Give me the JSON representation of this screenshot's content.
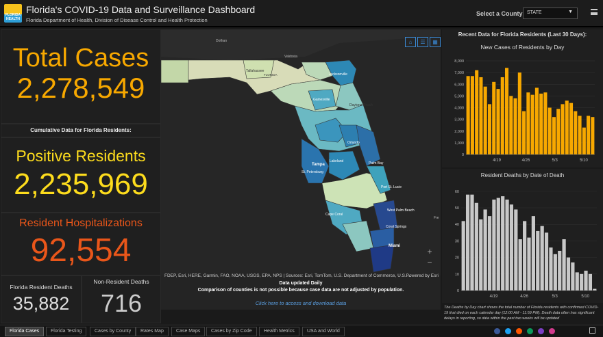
{
  "header": {
    "logo_text": "FLORIDA HEALTH",
    "title": "Florida's COVID-19 Data and Surveillance Dashboard",
    "subtitle": "Florida Department of Health, Division of Disease Control and Health Protection",
    "county_label": "Select a County",
    "county_value": "STATE"
  },
  "left": {
    "total_cases_title": "Total Cases",
    "total_cases_value": "2,278,549",
    "cumulative_label": "Cumulative Data for Florida Residents:",
    "positive_title": "Positive Residents",
    "positive_value": "2,235,969",
    "hosp_title": "Resident Hospitalizations",
    "hosp_value": "92,554",
    "deaths_title": "Florida Resident Deaths",
    "deaths_value": "35,882",
    "nonres_title": "Non-Resident Deaths",
    "nonres_value": "716"
  },
  "map": {
    "labels": [
      "Dothan",
      "Valdosta",
      "Tallahassee",
      "FLORIDA",
      "Jacksonville",
      "Gainesville",
      "Daytona Beach",
      "Orlando",
      "Tampa",
      "St. Petersburg",
      "Lakeland",
      "Palm Bay",
      "Port St. Lucie",
      "Cape Coral",
      "West Palm Beach",
      "Coral Springs",
      "Miami",
      "Fre"
    ],
    "attribution": "FDEP, Esri, HERE, Garmin, FAO, NOAA, USGS, EPA, NPS | Sources: Esri, TomTom, U.S. Department of Commerce, U.S. ...",
    "powered": "Powered by Esri",
    "note1": "Data updated Daily",
    "note2": "Comparison of counties is not possible because case data are not adjusted by population.",
    "link": "Click here to access and download data",
    "zoom_in": "+",
    "zoom_out": "−"
  },
  "right": {
    "header": "Recent Data for Florida Residents (Last 30 Days):",
    "footnote": "The Deaths by Day chart shows the total number of Florida residents with confirmed COVID-19 that died on each calendar day (12:00 AM - 11:59 PM). Death data often has significant delays in reporting, so data within the past two weeks will be updated"
  },
  "chart_data": [
    {
      "type": "bar",
      "title": "New Cases of Residents by Day",
      "color": "#f7a800",
      "y_ticks": [
        "0",
        "1,000",
        "2,000",
        "3,000",
        "4,000",
        "5,000",
        "6,000",
        "7,000",
        "8,000"
      ],
      "ylim": [
        0,
        8000
      ],
      "x_ticks": [
        "4/19",
        "4/26",
        "5/3",
        "5/10"
      ],
      "values": [
        6700,
        6700,
        7200,
        6600,
        5800,
        4300,
        6200,
        5600,
        6600,
        7400,
        5000,
        4800,
        7000,
        3700,
        5300,
        5100,
        5700,
        5200,
        5300,
        4000,
        3200,
        3900,
        4300,
        4600,
        4400,
        3700,
        3300,
        2300,
        3300,
        3200
      ]
    },
    {
      "type": "bar",
      "title": "Resident Deaths by Date of Death",
      "color": "#c8c8c8",
      "y_ticks": [
        "0",
        "10",
        "20",
        "30",
        "40",
        "50",
        "60"
      ],
      "ylim": [
        0,
        62
      ],
      "x_ticks": [
        "4/19",
        "4/26",
        "5/3",
        "5/10"
      ],
      "values": [
        42,
        58,
        58,
        53,
        43,
        49,
        45,
        55,
        56,
        57,
        55,
        52,
        49,
        31,
        42,
        32,
        45,
        36,
        39,
        35,
        26,
        22,
        24,
        31,
        20,
        17,
        11,
        10,
        12,
        10,
        1
      ]
    }
  ],
  "footer": {
    "tabs": [
      "Florida Cases",
      "Florida Testing",
      "Cases by County",
      "Rates Map",
      "Case Maps",
      "Cases by Zip Code",
      "Health Metrics",
      "USA and World"
    ]
  },
  "colors": {
    "accent": "#f7a800",
    "positive": "#fddc1d",
    "hosp": "#e9561a"
  }
}
